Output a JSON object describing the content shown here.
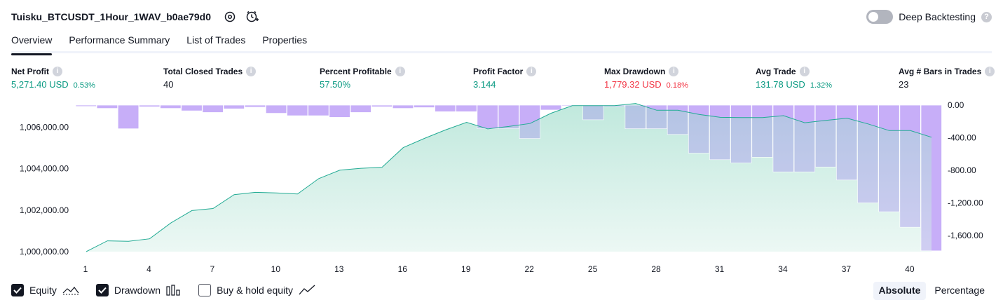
{
  "header": {
    "title": "Tuisku_BTCUSDT_1Hour_1WAV_b0ae79d0",
    "deep_backtesting_label": "Deep Backtesting",
    "deep_backtesting_on": false
  },
  "tabs": [
    {
      "label": "Overview",
      "active": true
    },
    {
      "label": "Performance Summary",
      "active": false
    },
    {
      "label": "List of Trades",
      "active": false
    },
    {
      "label": "Properties",
      "active": false
    }
  ],
  "metrics": [
    {
      "label": "Net Profit",
      "value": "5,271.40 USD",
      "pct": "0.53%",
      "color": "#089981"
    },
    {
      "label": "Total Closed Trades",
      "value": "40",
      "pct": "",
      "color": "#131722"
    },
    {
      "label": "Percent Profitable",
      "value": "57.50%",
      "pct": "",
      "color": "#089981"
    },
    {
      "label": "Profit Factor",
      "value": "3.144",
      "pct": "",
      "color": "#089981"
    },
    {
      "label": "Max Drawdown",
      "value": "1,779.32 USD",
      "pct": "0.18%",
      "color": "#f23645"
    },
    {
      "label": "Avg Trade",
      "value": "131.78 USD",
      "pct": "1.32%",
      "color": "#089981"
    },
    {
      "label": "Avg # Bars in Trades",
      "value": "23",
      "pct": "",
      "color": "#131722"
    }
  ],
  "legend": {
    "equity_label": "Equity",
    "equity_checked": true,
    "drawdown_label": "Drawdown",
    "drawdown_checked": true,
    "buyhold_label": "Buy & hold equity",
    "buyhold_checked": false
  },
  "modes": {
    "absolute_label": "Absolute",
    "percentage_label": "Percentage",
    "active": "Absolute"
  },
  "colors": {
    "equity_line": "#22ab94",
    "equity_fill": "#cdeee5",
    "drawdown": "#d4b5fb"
  },
  "chart_data": {
    "type": "area",
    "x_ticks": [
      1,
      4,
      7,
      10,
      13,
      16,
      19,
      22,
      25,
      28,
      31,
      34,
      37,
      40
    ],
    "x_tick_labels": [
      "1",
      "4",
      "7",
      "10",
      "13",
      "16",
      "19",
      "22",
      "25",
      "28",
      "31",
      "34",
      "37",
      "40"
    ],
    "y_left_ticks": [
      1000000,
      1002000,
      1004000,
      1006000
    ],
    "y_left_tick_labels": [
      "1,000,000.00",
      "1,002,000.00",
      "1,004,000.00",
      "1,006,000.00"
    ],
    "y_left_range": [
      1000000,
      1007000
    ],
    "y_right_ticks": [
      0,
      -400,
      -800,
      -1200,
      -1600
    ],
    "y_right_tick_labels": [
      "0.00",
      "-400.00",
      "-800.00",
      "-1,200.00",
      "-1,600.00"
    ],
    "y_right_range": [
      -1800,
      0
    ],
    "series": [
      {
        "name": "Equity",
        "type": "area",
        "axis": "left",
        "x": [
          1,
          2,
          3,
          4,
          5,
          6,
          7,
          8,
          9,
          10,
          11,
          12,
          13,
          14,
          15,
          16,
          17,
          18,
          19,
          20,
          21,
          22,
          23,
          24,
          25,
          26,
          27,
          28,
          29,
          30,
          31,
          32,
          33,
          34,
          35,
          36,
          37,
          38,
          39,
          40,
          41
        ],
        "values": [
          1000000,
          1000520,
          1000500,
          1000620,
          1001380,
          1001980,
          1002080,
          1002750,
          1002860,
          1002830,
          1002780,
          1003520,
          1003930,
          1004020,
          1004070,
          1005020,
          1005460,
          1005870,
          1006240,
          1005920,
          1006040,
          1006180,
          1006680,
          1007040,
          1007040,
          1007040,
          1007150,
          1006820,
          1006820,
          1006620,
          1006480,
          1006470,
          1006470,
          1006560,
          1006220,
          1006330,
          1006440,
          1006160,
          1005840,
          1005840,
          1005520
        ]
      },
      {
        "name": "Drawdown",
        "type": "bar",
        "axis": "right",
        "x": [
          1,
          2,
          3,
          4,
          5,
          6,
          7,
          8,
          9,
          10,
          11,
          12,
          13,
          14,
          15,
          16,
          17,
          18,
          19,
          20,
          21,
          22,
          23,
          24,
          25,
          26,
          27,
          28,
          29,
          30,
          31,
          32,
          33,
          34,
          35,
          36,
          37,
          38,
          39,
          40,
          41
        ],
        "values": [
          -15,
          -40,
          -290,
          -20,
          -40,
          -70,
          -90,
          -45,
          -25,
          -100,
          -130,
          -130,
          -150,
          -90,
          -20,
          -40,
          -30,
          -80,
          -80,
          -290,
          -290,
          -410,
          -60,
          -10,
          -180,
          -20,
          -290,
          -290,
          -360,
          -590,
          -670,
          -710,
          -640,
          -820,
          -820,
          -760,
          -920,
          -1200,
          -1310,
          -1500,
          -1790
        ]
      }
    ]
  }
}
